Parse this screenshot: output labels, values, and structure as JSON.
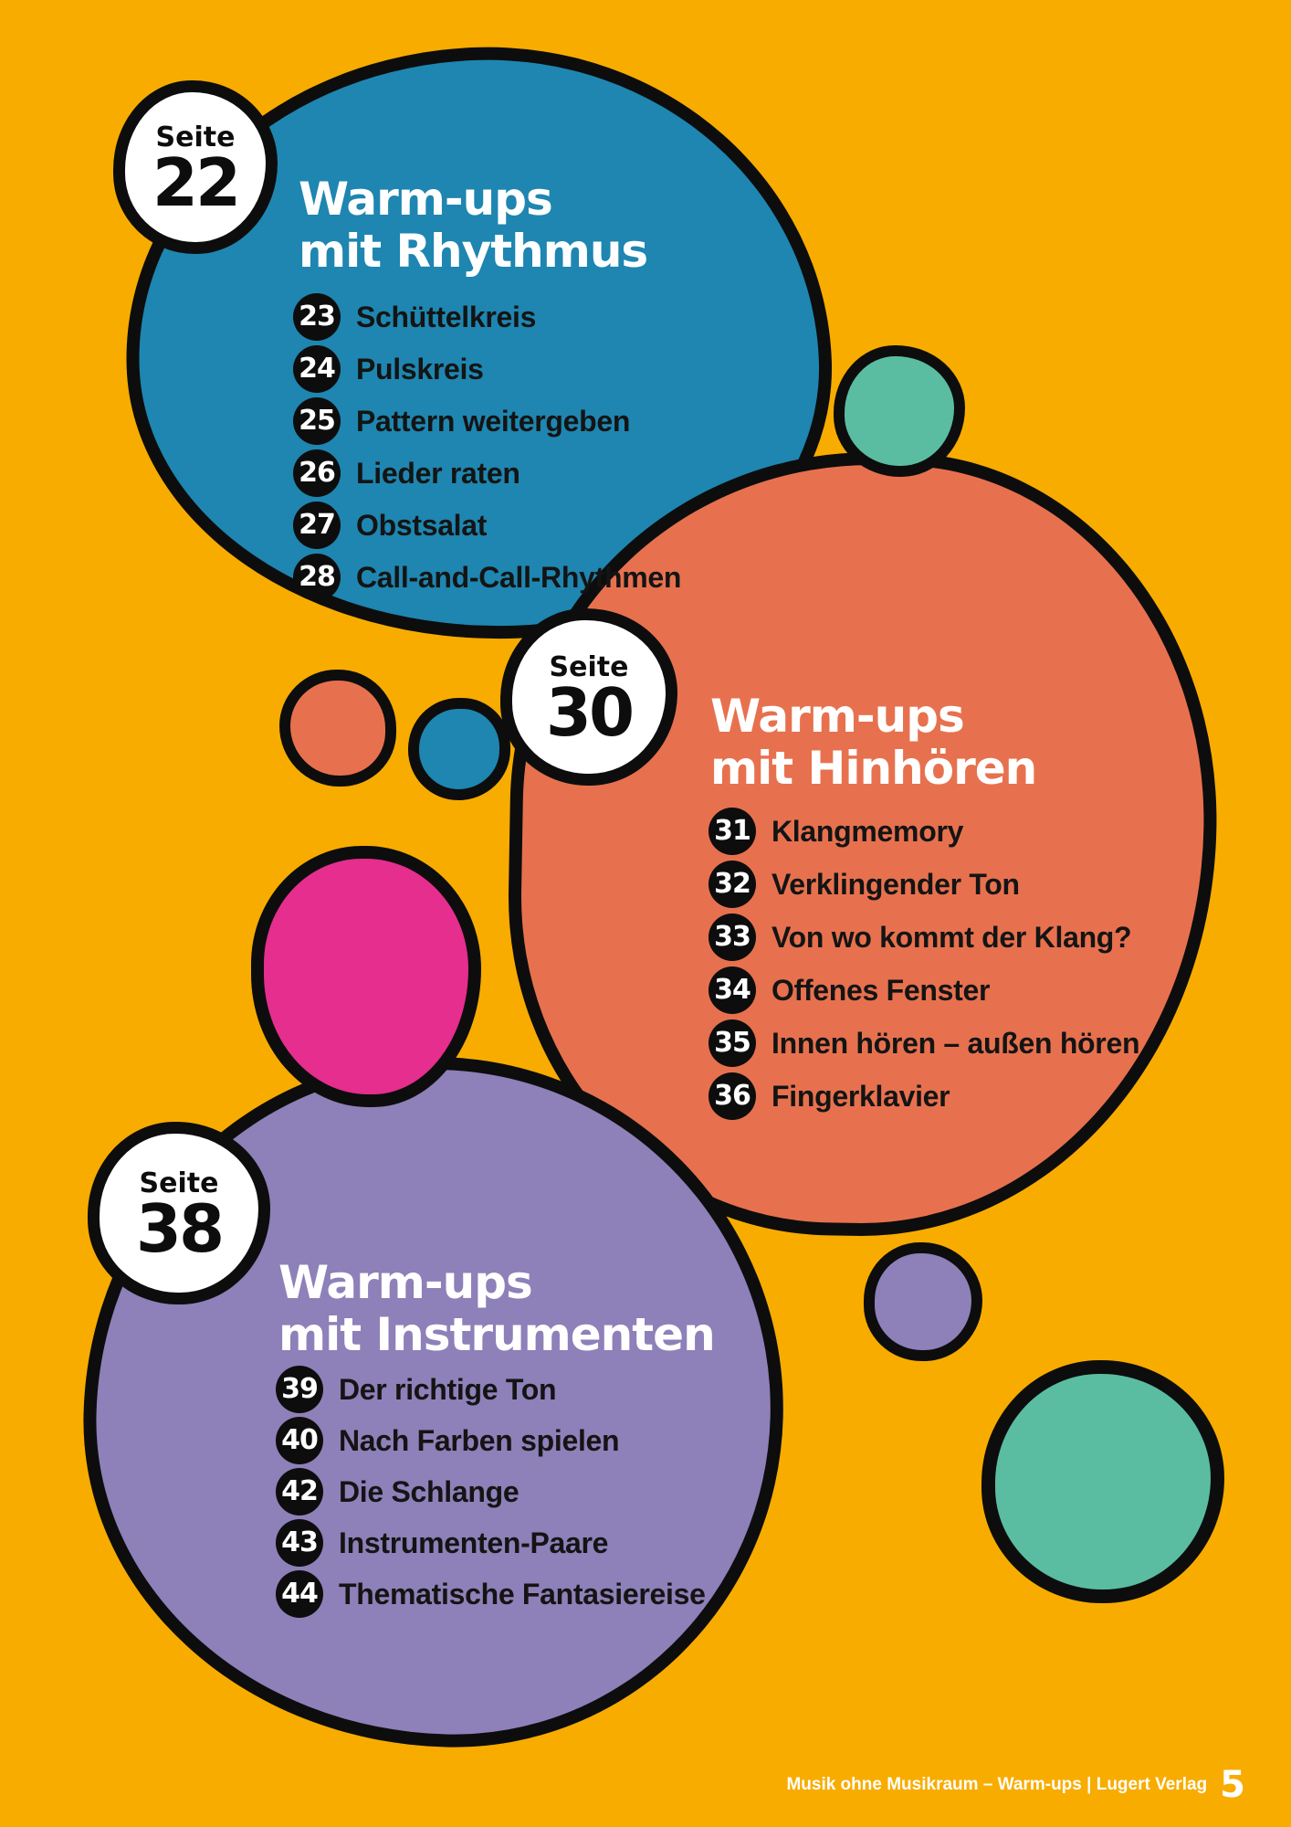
{
  "page": {
    "footer_text": "Musik ohne Musikraum – Warm-ups | Lugert Verlag",
    "page_number": "5"
  },
  "sections": [
    {
      "badge_label": "Seite",
      "badge_number": "22",
      "title_line1": "Warm-ups",
      "title_line2": "mit Rhythmus",
      "items": [
        {
          "num": "23",
          "label": "Schüttelkreis"
        },
        {
          "num": "24",
          "label": "Pulskreis"
        },
        {
          "num": "25",
          "label": "Pattern weitergeben"
        },
        {
          "num": "26",
          "label": "Lieder raten"
        },
        {
          "num": "27",
          "label": "Obstsalat"
        },
        {
          "num": "28",
          "label": "Call-and-Call-Rhythmen"
        }
      ]
    },
    {
      "badge_label": "Seite",
      "badge_number": "30",
      "title_line1": "Warm-ups",
      "title_line2": "mit Hinhören",
      "items": [
        {
          "num": "31",
          "label": "Klangmemory"
        },
        {
          "num": "32",
          "label": "Verklingender Ton"
        },
        {
          "num": "33",
          "label": "Von wo kommt der Klang?"
        },
        {
          "num": "34",
          "label": "Offenes Fenster"
        },
        {
          "num": "35",
          "label": "Innen hören – außen hören"
        },
        {
          "num": "36",
          "label": "Fingerklavier"
        }
      ]
    },
    {
      "badge_label": "Seite",
      "badge_number": "38",
      "title_line1": "Warm-ups",
      "title_line2": "mit Instrumenten",
      "items": [
        {
          "num": "39",
          "label": "Der richtige Ton"
        },
        {
          "num": "40",
          "label": "Nach Farben spielen"
        },
        {
          "num": "42",
          "label": "Die Schlange"
        },
        {
          "num": "43",
          "label": "Instrumenten-Paare"
        },
        {
          "num": "44",
          "label": "Thematische Fantasiereise"
        }
      ]
    }
  ],
  "palette": {
    "background": "#F8AC00",
    "blue": "#1E86B0",
    "orange": "#E7714E",
    "purple": "#8E80B8",
    "pink": "#E52E8D",
    "teal": "#5ABDA2",
    "outline": "#0D0D0D",
    "title_text": "#FFFFFF",
    "item_text": "#141414"
  }
}
